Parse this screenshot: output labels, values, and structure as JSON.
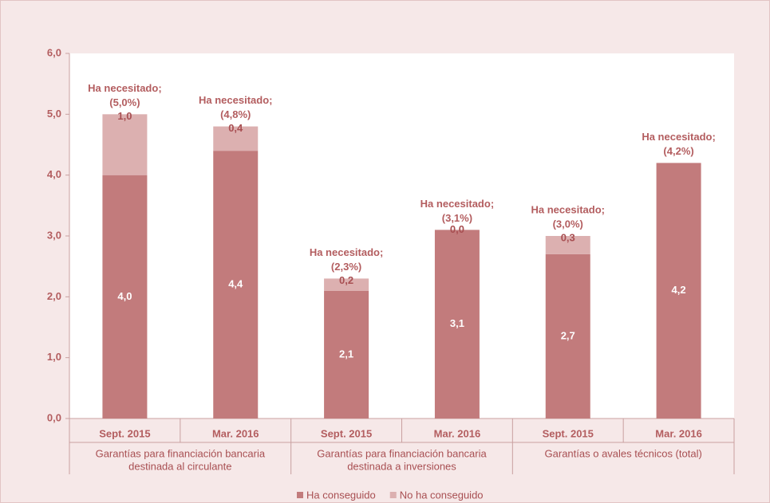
{
  "chart_data": {
    "type": "bar",
    "stacked": true,
    "categories": [
      "Sept. 2015",
      "Mar. 2016",
      "Sept. 2015",
      "Mar. 2016",
      "Sept. 2015",
      "Mar. 2016"
    ],
    "groups": [
      [
        "Garantías para financiación bancaria",
        "destinada al circulante"
      ],
      [
        "Garantías para financiación bancaria",
        "destinada a inversiones"
      ],
      [
        "Garantías o avales técnicos (total)"
      ]
    ],
    "series": [
      {
        "name": "Ha conseguido",
        "color": "#c27b7c",
        "values": [
          4.0,
          4.4,
          2.1,
          3.1,
          2.7,
          4.2
        ],
        "value_labels": [
          "4,0",
          "4,4",
          "2,1",
          "3,1",
          "2,7",
          "4,2"
        ]
      },
      {
        "name": "No ha conseguido",
        "color": "#dcb0b0",
        "values": [
          1.0,
          0.4,
          0.2,
          0.0,
          0.3,
          null
        ],
        "value_labels": [
          "1,0",
          "0,4",
          "0,2",
          "0,0",
          "0,3",
          null
        ]
      }
    ],
    "annotations": [
      [
        "Ha necesitado;",
        "(5,0%)"
      ],
      [
        "Ha necesitado;",
        "(4,8%)"
      ],
      [
        "Ha necesitado;",
        "(2,3%)"
      ],
      [
        "Ha necesitado;",
        "(3,1%)"
      ],
      [
        "Ha necesitado;",
        "(3,0%)"
      ],
      [
        "Ha necesitado;",
        "(4,2%)"
      ]
    ],
    "ylim": [
      0,
      6
    ],
    "yticks": [
      {
        "value": 0,
        "label": "0,0"
      },
      {
        "value": 1,
        "label": "1,0"
      },
      {
        "value": 2,
        "label": "2,0"
      },
      {
        "value": 3,
        "label": "3,0"
      },
      {
        "value": 4,
        "label": "4,0"
      },
      {
        "value": 5,
        "label": "5,0"
      },
      {
        "value": 6,
        "label": "6,0"
      }
    ],
    "legend": "bottom"
  }
}
